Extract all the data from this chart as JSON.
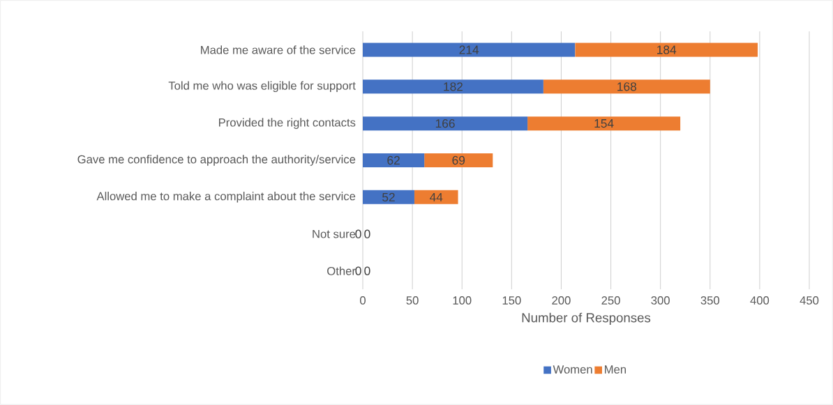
{
  "chart_data": {
    "type": "bar",
    "orientation": "horizontal",
    "stacked": true,
    "xlabel": "Number of Responses",
    "categories": [
      "Made me aware of the service",
      "Told me who was eligible for support",
      "Provided the right contacts",
      "Gave me confidence to approach the authority/service",
      "Allowed me to make a complaint about the service",
      "Not sure",
      "Other"
    ],
    "series": [
      {
        "name": "Women",
        "color": "#4472c4",
        "values": [
          214,
          182,
          166,
          62,
          52,
          0,
          0
        ]
      },
      {
        "name": "Men",
        "color": "#ed7d31",
        "values": [
          184,
          168,
          154,
          69,
          44,
          0,
          0
        ]
      }
    ],
    "xlim": [
      0,
      450
    ],
    "xticks": [
      0,
      50,
      100,
      150,
      200,
      250,
      300,
      350,
      400,
      450
    ],
    "grid": "x",
    "legend": "bottom",
    "data_labels": true
  }
}
